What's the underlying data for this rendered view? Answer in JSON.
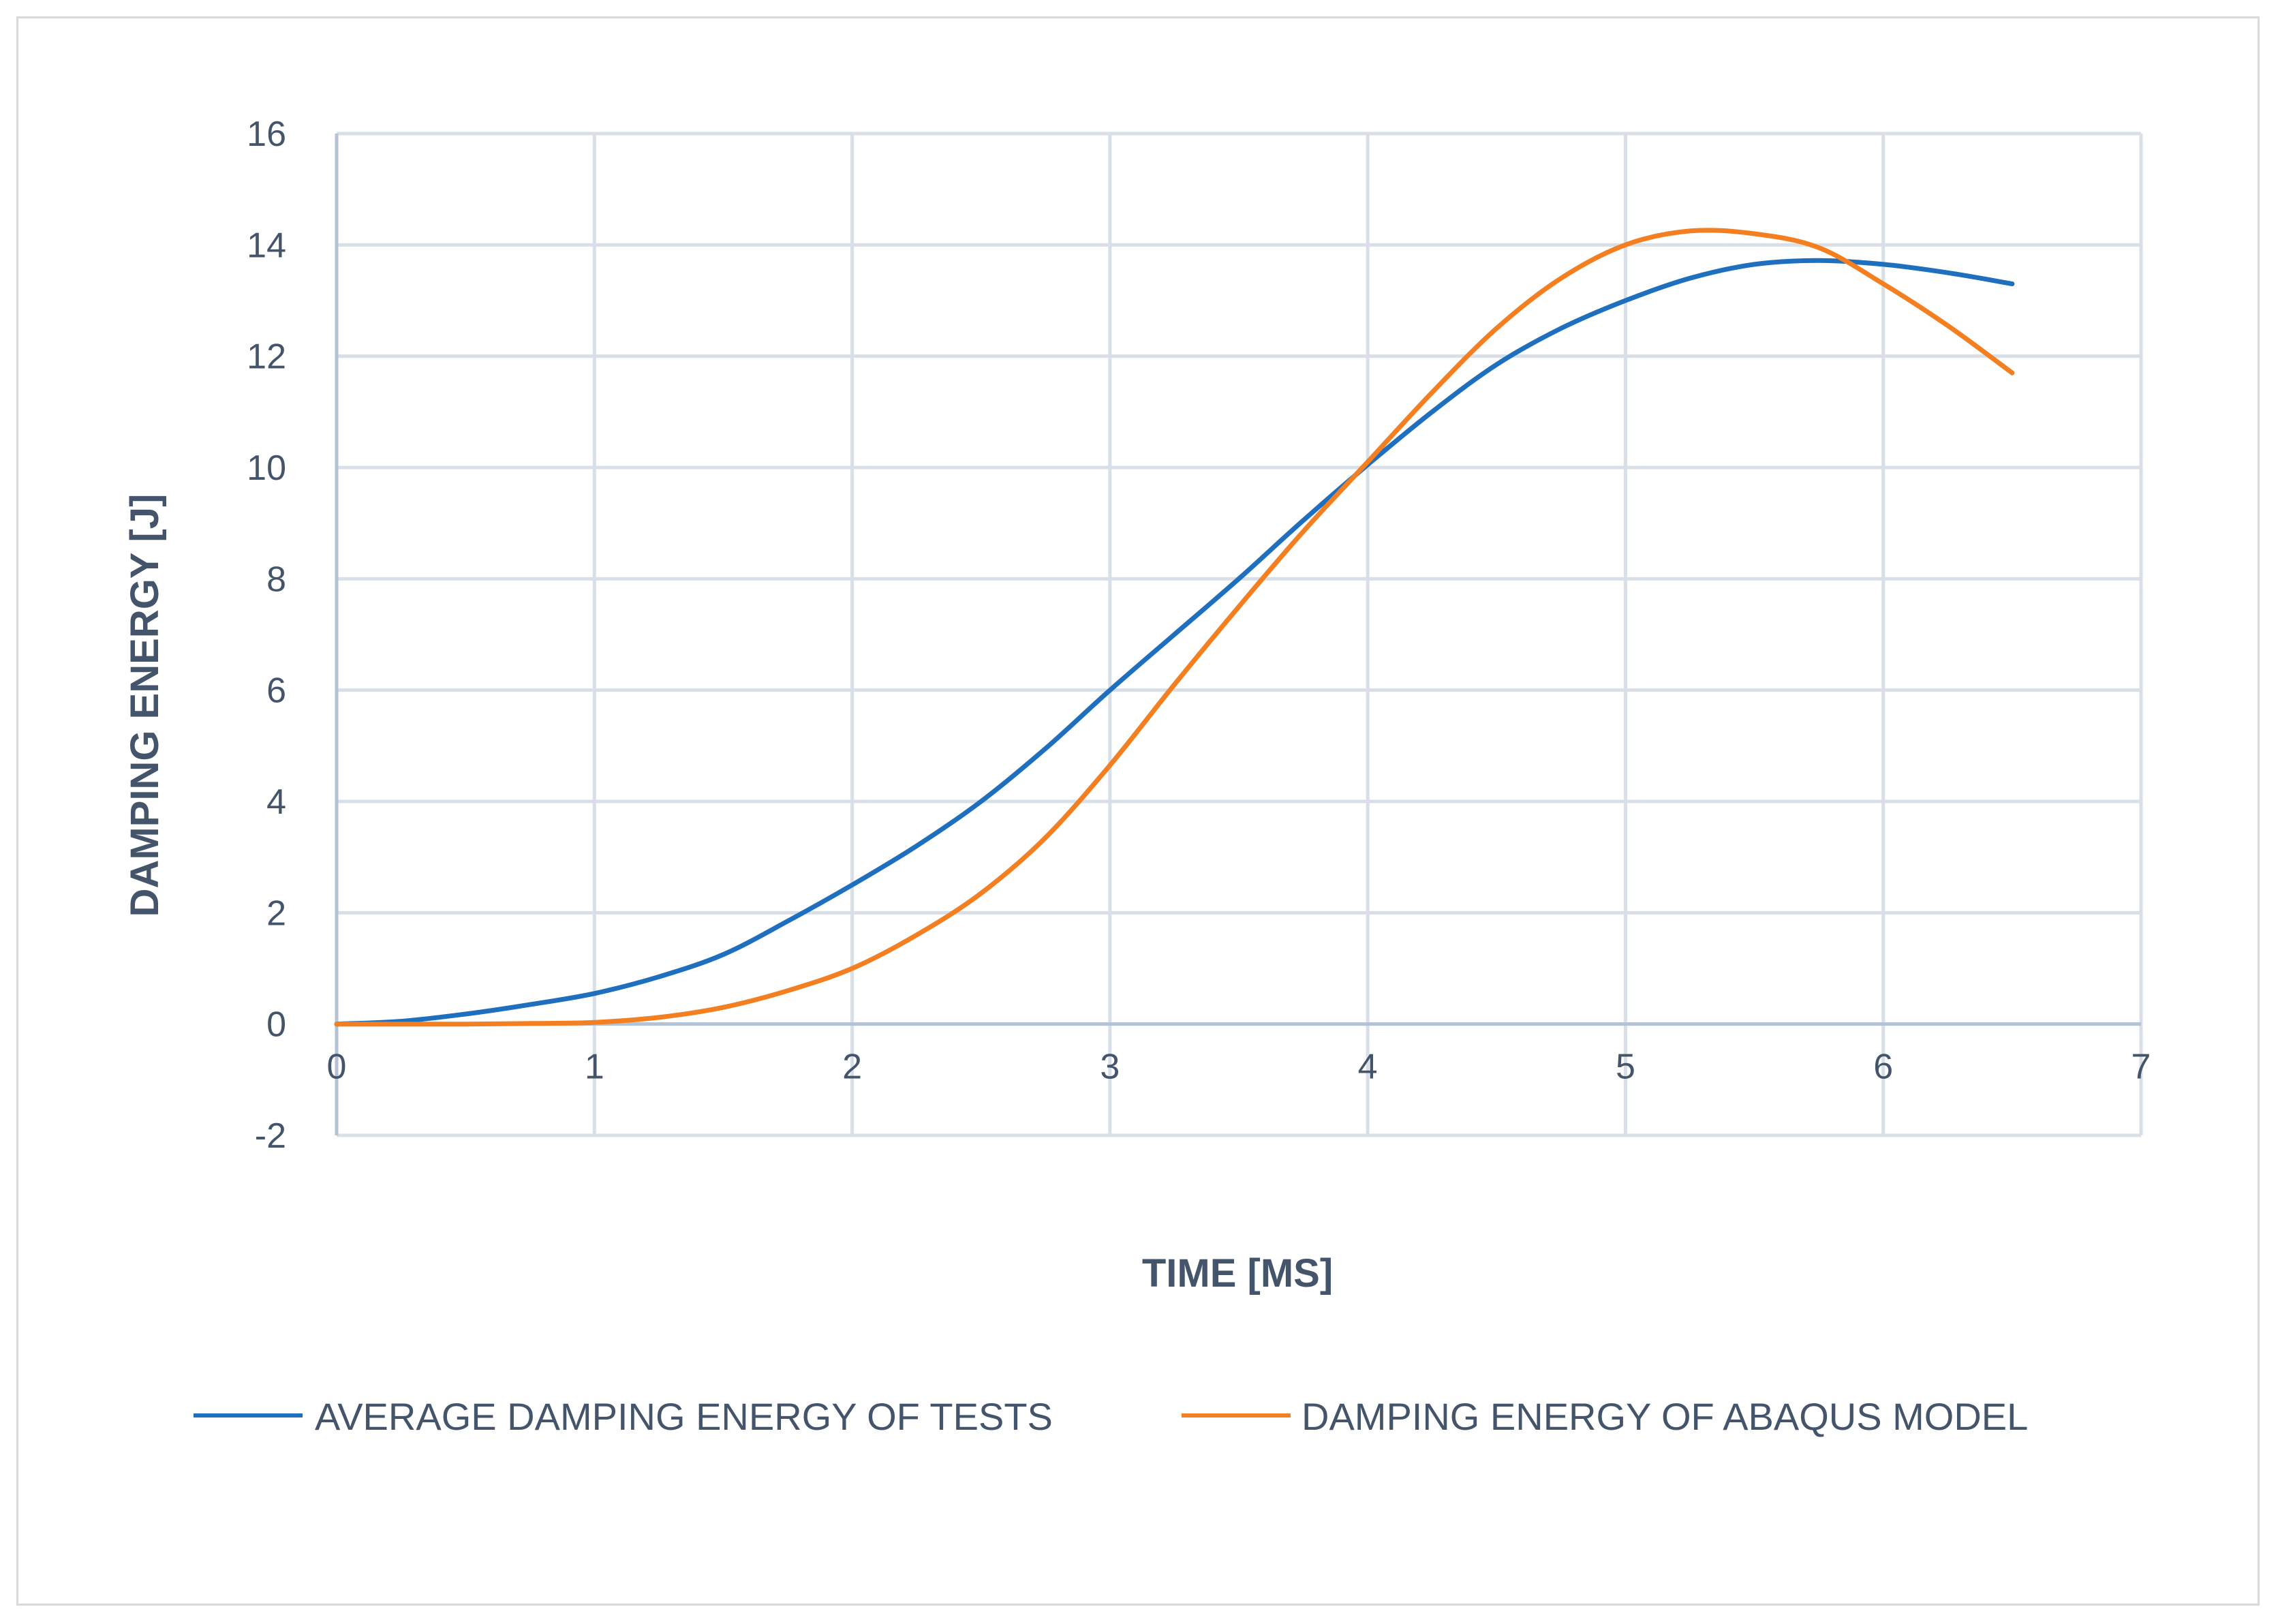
{
  "chart_data": {
    "type": "line",
    "title": "",
    "xlabel": "TIME [MS]",
    "ylabel": "DAMPING ENERGY [J]",
    "xlim": [
      0,
      7
    ],
    "ylim": [
      -2,
      16
    ],
    "x_ticks": [
      0,
      1,
      2,
      3,
      4,
      5,
      6,
      7
    ],
    "y_ticks": [
      -2,
      0,
      2,
      4,
      6,
      8,
      10,
      12,
      14,
      16
    ],
    "grid": true,
    "legend_position": "bottom",
    "series": [
      {
        "name": "AVERAGE DAMPING ENERGY OF TESTS",
        "color": "#1f6fbf",
        "x": [
          0,
          0.25,
          0.5,
          0.75,
          1,
          1.25,
          1.5,
          1.75,
          2,
          2.25,
          2.5,
          2.75,
          3,
          3.25,
          3.5,
          3.75,
          4,
          4.25,
          4.5,
          4.75,
          5,
          5.25,
          5.5,
          5.75,
          6,
          6.25,
          6.5
        ],
        "y": [
          0,
          0.05,
          0.18,
          0.35,
          0.55,
          0.85,
          1.25,
          1.85,
          2.5,
          3.2,
          4.0,
          4.95,
          6.0,
          7.0,
          8.0,
          9.05,
          10.05,
          11.0,
          11.85,
          12.5,
          13.0,
          13.4,
          13.65,
          13.72,
          13.65,
          13.5,
          13.3
        ]
      },
      {
        "name": "DAMPING ENERGY OF ABAQUS MODEL",
        "color": "#f47f20",
        "x": [
          0,
          0.25,
          0.5,
          0.75,
          1,
          1.25,
          1.5,
          1.75,
          2,
          2.25,
          2.5,
          2.75,
          3,
          3.25,
          3.5,
          3.75,
          4,
          4.25,
          4.5,
          4.75,
          5,
          5.25,
          5.5,
          5.75,
          6,
          6.25,
          6.5
        ],
        "y": [
          0,
          0,
          0,
          0.01,
          0.03,
          0.12,
          0.3,
          0.6,
          1.0,
          1.6,
          2.35,
          3.35,
          4.65,
          6.1,
          7.5,
          8.85,
          10.1,
          11.35,
          12.5,
          13.4,
          14.0,
          14.25,
          14.2,
          13.95,
          13.3,
          12.55,
          11.7
        ]
      }
    ]
  }
}
